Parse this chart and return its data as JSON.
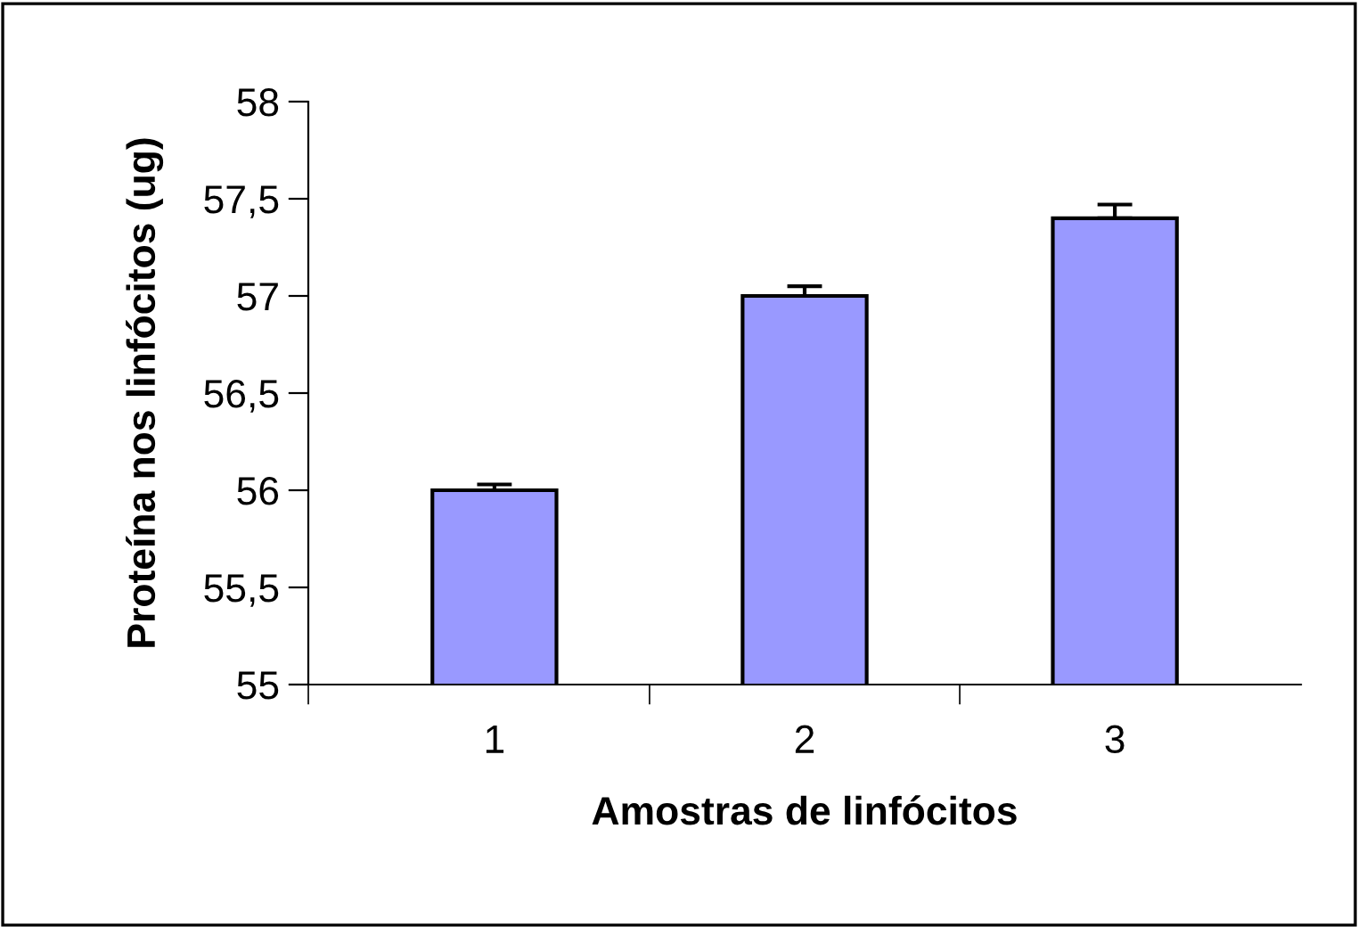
{
  "chart_data": {
    "type": "bar",
    "xlabel": "Amostras de linfócitos",
    "ylabel": "Proteína nos linfócitos (ug)",
    "categories": [
      "1",
      "2",
      "3"
    ],
    "values": [
      56,
      57,
      57.4
    ],
    "errors": [
      [
        56,
        56.03
      ],
      [
        57,
        57.05
      ],
      [
        57.4,
        57.47
      ]
    ],
    "color": "#9999ff",
    "ylim": [
      55,
      58
    ],
    "yticks": [
      {
        "value": 55,
        "label": "55"
      },
      {
        "value": 55.5,
        "label": "55,5"
      },
      {
        "value": 56,
        "label": "56"
      },
      {
        "value": 56.5,
        "label": "56,5"
      },
      {
        "value": 57,
        "label": "57"
      },
      {
        "value": 57.5,
        "label": "57,5"
      },
      {
        "value": 58,
        "label": "58"
      }
    ],
    "grid": false
  }
}
